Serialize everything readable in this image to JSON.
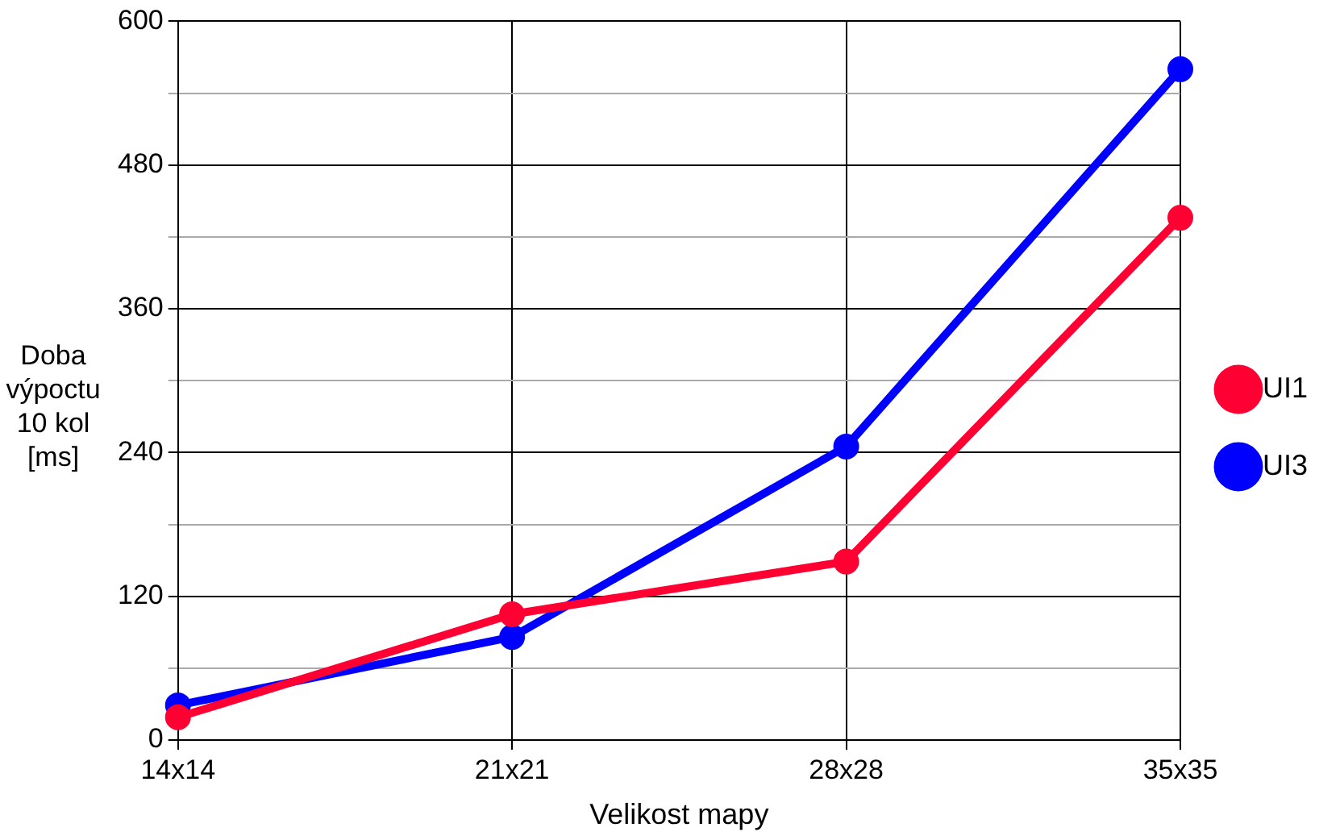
{
  "chart_data": {
    "type": "line",
    "xlabel": "Velikost mapy",
    "ylabel": "Doba výpoctu 10 kol [ms]",
    "categories": [
      "14x14",
      "21x21",
      "28x28",
      "35x35"
    ],
    "series": [
      {
        "name": "UI1",
        "color": "#ff0033",
        "values": [
          19,
          105,
          149,
          436
        ]
      },
      {
        "name": "UI3",
        "color": "#0000ff",
        "values": [
          29,
          86,
          245,
          560
        ]
      }
    ],
    "ylim": [
      0,
      600
    ],
    "yticks": [
      0,
      {
        "value": 60,
        "label": null
      },
      120,
      {
        "value": 180,
        "label": null
      },
      240,
      {
        "value": 300,
        "label": null
      },
      360,
      {
        "value": 420,
        "label": null
      },
      480,
      {
        "value": 540,
        "label": null
      },
      600
    ],
    "grid": true,
    "legend": "right",
    "marker": "circle",
    "line_style": "solid"
  }
}
